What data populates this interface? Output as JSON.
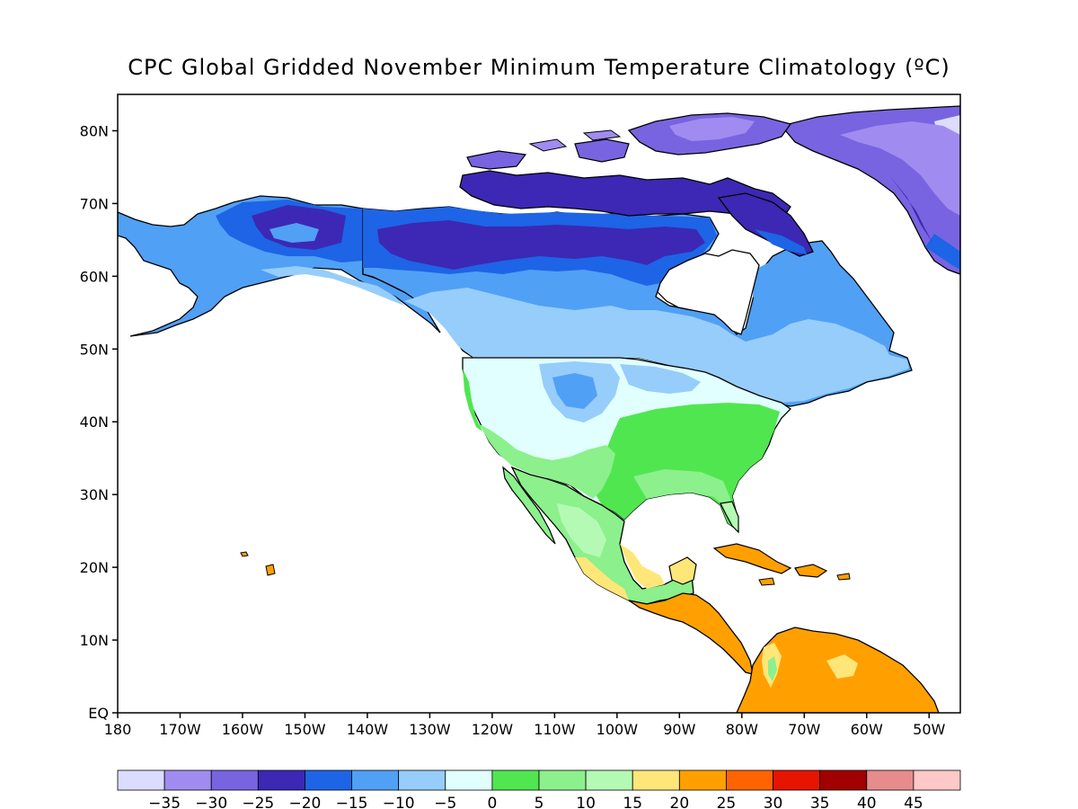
{
  "title": "CPC Global Gridded November Minimum Temperature Climatology (ºC)",
  "lat_labels": [
    "80N",
    "70N",
    "60N",
    "50N",
    "40N",
    "30N",
    "20N",
    "10N",
    "EQ"
  ],
  "lon_labels": [
    "180",
    "170W",
    "160W",
    "150W",
    "140W",
    "130W",
    "120W",
    "110W",
    "100W",
    "90W",
    "80W",
    "70W",
    "60W",
    "50W"
  ],
  "colorbar": {
    "colors": [
      "#dcdcff",
      "#a08cf0",
      "#7864e0",
      "#3c28b4",
      "#1e64e6",
      "#50a0f5",
      "#96cdfa",
      "#e1ffff",
      "#50e650",
      "#8cf08c",
      "#b4fab4",
      "#ffe678",
      "#ffa000",
      "#ff6400",
      "#e61400",
      "#a00000",
      "#e68c8c",
      "#ffc8c8"
    ],
    "labels": [
      "−35",
      "−30",
      "−25",
      "−20",
      "−15",
      "−10",
      "−5",
      "0",
      "5",
      "10",
      "15",
      "20",
      "25",
      "30",
      "35",
      "40",
      "45"
    ]
  },
  "map": {
    "lon_range": [
      -180,
      -45
    ],
    "lat_range": [
      0,
      85
    ]
  }
}
